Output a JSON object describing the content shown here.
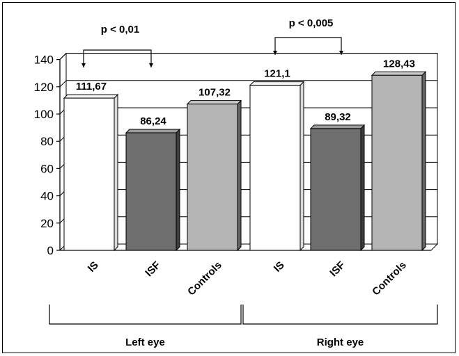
{
  "chart_data": {
    "type": "bar",
    "categories": [
      "IS",
      "ISF",
      "Controls",
      "IS",
      "ISF",
      "Controls"
    ],
    "values": [
      111.67,
      86.24,
      107.32,
      121.1,
      89.32,
      128.43
    ],
    "value_labels": [
      "111,67",
      "86,24",
      "107,32",
      "121,1",
      "89,32",
      "128,43"
    ],
    "bar_colors": [
      "#ffffff",
      "#6e6e6e",
      "#b4b4b4",
      "#ffffff",
      "#6e6e6e",
      "#b4b4b4"
    ],
    "groups": [
      {
        "label": "Left eye",
        "from": 0,
        "to": 2
      },
      {
        "label": "Right eye",
        "from": 3,
        "to": 5
      }
    ],
    "significance": [
      {
        "text": "p < 0,01",
        "from": 0,
        "to": 1
      },
      {
        "text": "p < 0,005",
        "from": 3,
        "to": 4
      }
    ],
    "yticks": [
      0,
      20,
      40,
      60,
      80,
      100,
      120,
      140
    ],
    "ylim": [
      0,
      140
    ],
    "grid": true,
    "title": "",
    "xlabel": "",
    "ylabel": ""
  }
}
